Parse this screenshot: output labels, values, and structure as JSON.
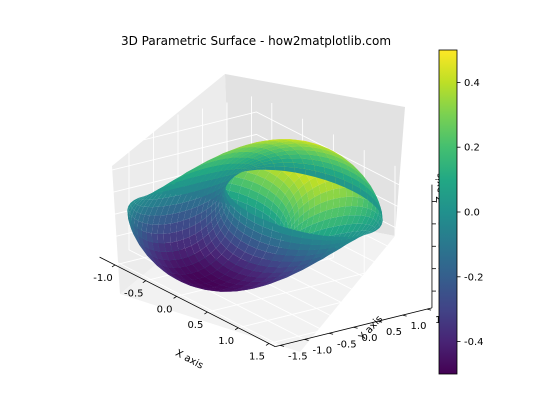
{
  "chart_data": {
    "type": "surface3d",
    "title": "3D Parametric Surface - how2matplotlib.com",
    "xlabel": "X axis",
    "ylabel": "Y axis",
    "zlabel": "Z axis",
    "xlim": [
      -1.25,
      1.6
    ],
    "ylim": [
      -1.6,
      1.6
    ],
    "zlim": [
      -0.55,
      0.55
    ],
    "x_ticks": [
      "-1.0",
      "-0.5",
      "0.0",
      "0.5",
      "1.0",
      "1.5"
    ],
    "y_ticks": [
      "-1.5",
      "-1.0",
      "-0.5",
      "0.0",
      "0.5",
      "1.0",
      "1.5"
    ],
    "z_ticks": [
      "-0.4",
      "-0.2",
      "0.0",
      "0.2",
      "0.4"
    ],
    "colormap": "viridis",
    "color_range": [
      -0.5,
      0.5
    ],
    "colorbar_ticks": [
      "-0.4",
      "-0.2",
      "0.0",
      "0.2",
      "0.4"
    ],
    "surface": {
      "parametrization": "x = cos(u), y = sin(u) + cos(v), z = sin(u)*sin(v)/2",
      "u_range": [
        0,
        6.2832
      ],
      "v_range": [
        0,
        3.1416
      ],
      "grid": [
        48,
        24
      ]
    },
    "grid": true,
    "colorbar_position": "right"
  }
}
